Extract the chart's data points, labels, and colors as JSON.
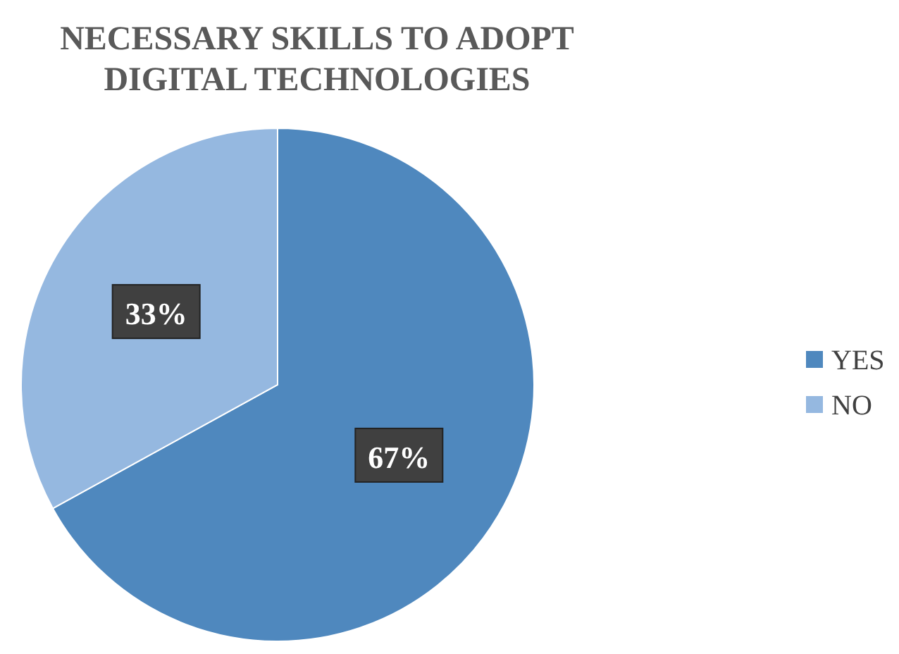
{
  "chart_data": {
    "type": "pie",
    "title": "NECESSARY SKILLS TO ADOPT DIGITAL TECHNOLOGIES",
    "categories": [
      "YES",
      "NO"
    ],
    "values": [
      67,
      33
    ],
    "colors": [
      "#4f88be",
      "#95b8e0"
    ],
    "value_labels": [
      "67%",
      "33%"
    ],
    "legend": "right"
  }
}
